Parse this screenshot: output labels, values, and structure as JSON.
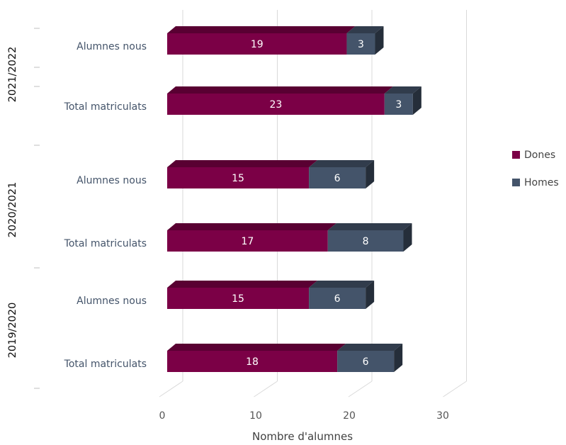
{
  "chart_data": {
    "type": "bar",
    "orientation": "horizontal",
    "stacked": true,
    "three_d": true,
    "xlabel": "Nombre d'alumnes",
    "xlim": [
      0,
      30
    ],
    "xticks": [
      "0",
      "10",
      "20",
      "30"
    ],
    "grid": true,
    "legend_position": "right",
    "groups": [
      {
        "label": "2021/2022",
        "categories": [
          "Alumnes nous",
          "Total matriculats"
        ]
      },
      {
        "label": "2020/2021",
        "categories": [
          "Alumnes nous",
          "Total matriculats"
        ]
      },
      {
        "label": "2019/2020",
        "categories": [
          "Alumnes nous",
          "Total matriculats"
        ]
      }
    ],
    "categories": [
      "Alumnes nous",
      "Total matriculats",
      "Alumnes nous",
      "Total matriculats",
      "Alumnes nous",
      "Total matriculats"
    ],
    "series": [
      {
        "name": "Dones",
        "color": "#7b0046",
        "values": [
          19,
          23,
          15,
          17,
          15,
          18
        ]
      },
      {
        "name": "Homes",
        "color": "#44546a",
        "values": [
          3,
          3,
          6,
          8,
          6,
          6
        ]
      }
    ]
  }
}
